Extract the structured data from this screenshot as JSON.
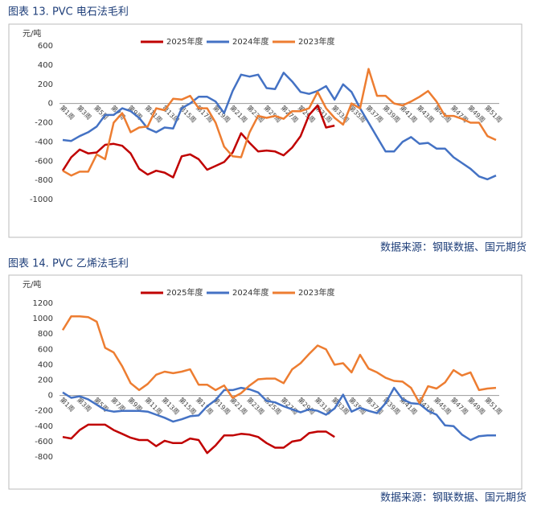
{
  "chart_data": [
    {
      "type": "line",
      "title": "图表 13. PVC 电石法毛利",
      "y_label": "元/吨",
      "source": "数据来源：钢联数据、国元期货",
      "categories": [
        "第1周",
        null,
        "第3周",
        null,
        "第5周",
        null,
        "第7周",
        null,
        "第9周",
        null,
        "第11周",
        null,
        "第13周",
        null,
        "第15周",
        null,
        "第17周",
        null,
        "第19周",
        null,
        "第21周",
        null,
        "第23周",
        null,
        "第25周",
        null,
        "第27周",
        null,
        "第29周",
        null,
        "第31周",
        null,
        "第33周",
        null,
        "第35周",
        null,
        "第37周",
        null,
        "第39周",
        null,
        "第41周",
        null,
        "第43周",
        null,
        "第45周",
        null,
        "第47周",
        null,
        "第49周",
        null,
        "第51周",
        null
      ],
      "series": [
        {
          "name": "2025年度",
          "color": "#c00000",
          "values": [
            -700,
            -560,
            -480,
            -520,
            -510,
            -430,
            -420,
            -440,
            -520,
            -680,
            -740,
            -700,
            -720,
            -770,
            -550,
            -530,
            -580,
            -690,
            -650,
            -610,
            -510,
            -310,
            -410,
            -500,
            -490,
            -500,
            -540,
            -460,
            -340,
            -120,
            -20,
            -250,
            -230,
            null,
            null,
            null,
            null,
            null,
            null,
            null,
            null,
            null,
            null,
            null,
            null,
            null,
            null,
            null,
            null,
            null,
            null,
            null
          ]
        },
        {
          "name": "2024年度",
          "color": "#4472c4",
          "values": [
            -380,
            -390,
            -340,
            -300,
            -240,
            -120,
            -120,
            -50,
            -80,
            -150,
            -260,
            -300,
            -250,
            -260,
            -50,
            0,
            70,
            70,
            20,
            -100,
            130,
            300,
            280,
            300,
            160,
            150,
            320,
            230,
            120,
            100,
            130,
            180,
            40,
            200,
            120,
            -50,
            -200,
            -350,
            -500,
            -500,
            -400,
            -350,
            -420,
            -410,
            -470,
            -470,
            -560,
            -620,
            -680,
            -760,
            -790,
            -750
          ]
        },
        {
          "name": "2023年度",
          "color": "#ed7d31",
          "values": [
            -700,
            -750,
            -710,
            -710,
            -530,
            -580,
            -200,
            -100,
            -300,
            -250,
            -240,
            -50,
            -70,
            50,
            40,
            80,
            -50,
            -50,
            -200,
            -450,
            -550,
            -560,
            -300,
            -130,
            -150,
            -130,
            -160,
            -80,
            -80,
            -50,
            120,
            -50,
            -150,
            -220,
            0,
            -50,
            360,
            80,
            80,
            0,
            -20,
            20,
            70,
            130,
            20,
            -130,
            -130,
            -160,
            -200,
            -200,
            -340,
            -380
          ]
        }
      ],
      "ylim": [
        -1000,
        600
      ],
      "yticks": [
        -1000,
        -800,
        -600,
        -400,
        -200,
        0,
        200,
        400,
        600
      ],
      "grid": false,
      "legend": "top"
    },
    {
      "type": "line",
      "title": "图表 14. PVC 乙烯法毛利",
      "y_label": "元/吨",
      "source": "数据来源：钢联数据、国元期货",
      "categories": [
        "第1周",
        null,
        "第3周",
        null,
        "第5周",
        null,
        "第7周",
        null,
        "第9周",
        null,
        "第11周",
        null,
        "第13周",
        null,
        "第15周",
        null,
        "第17周",
        null,
        "第19周",
        null,
        "第21周",
        null,
        "第23周",
        null,
        "第25周",
        null,
        "第27周",
        null,
        "第29周",
        null,
        "第31周",
        null,
        "第33周",
        null,
        "第35周",
        null,
        "第37周",
        null,
        "第39周",
        null,
        "第41周",
        null,
        "第43周",
        null,
        "第45周",
        null,
        "第47周",
        null,
        "第49周",
        null,
        "第51周",
        null
      ],
      "series": [
        {
          "name": "2025年度",
          "color": "#c00000",
          "values": [
            -540,
            -560,
            -450,
            -380,
            -380,
            -380,
            -450,
            -500,
            -550,
            -580,
            -580,
            -660,
            -590,
            -620,
            -620,
            -560,
            -580,
            -750,
            -650,
            -520,
            -520,
            -500,
            -510,
            -540,
            -620,
            -680,
            -680,
            -600,
            -580,
            -490,
            -470,
            -470,
            -540,
            null,
            null,
            null,
            null,
            null,
            null,
            null,
            null,
            null,
            null,
            null,
            null,
            null,
            null,
            null,
            null,
            null,
            null,
            null
          ]
        },
        {
          "name": "2024年度",
          "color": "#4472c4",
          "values": [
            40,
            -30,
            -10,
            -50,
            -120,
            -190,
            -210,
            -200,
            -200,
            -200,
            -210,
            -250,
            -290,
            -340,
            -310,
            -270,
            -260,
            -140,
            -60,
            70,
            70,
            100,
            80,
            40,
            -70,
            -90,
            -140,
            -180,
            -220,
            -180,
            -200,
            -250,
            -170,
            10,
            -210,
            -160,
            -200,
            -230,
            -100,
            100,
            -50,
            -100,
            -110,
            -200,
            -250,
            -390,
            -400,
            -510,
            -580,
            -530,
            -520,
            -520
          ]
        },
        {
          "name": "2023年度",
          "color": "#ed7d31",
          "values": [
            850,
            1030,
            1030,
            1020,
            960,
            620,
            560,
            380,
            160,
            70,
            150,
            270,
            310,
            290,
            310,
            340,
            140,
            140,
            70,
            130,
            -30,
            30,
            130,
            210,
            220,
            220,
            160,
            340,
            420,
            540,
            650,
            600,
            400,
            420,
            300,
            530,
            350,
            300,
            230,
            190,
            180,
            100,
            -100,
            120,
            90,
            170,
            330,
            260,
            300,
            70,
            90,
            100
          ]
        }
      ],
      "ylim": [
        -800,
        1200
      ],
      "yticks": [
        -800,
        -600,
        -400,
        -200,
        0,
        200,
        400,
        600,
        800,
        1000,
        1200
      ],
      "grid": false,
      "legend": "top"
    }
  ]
}
